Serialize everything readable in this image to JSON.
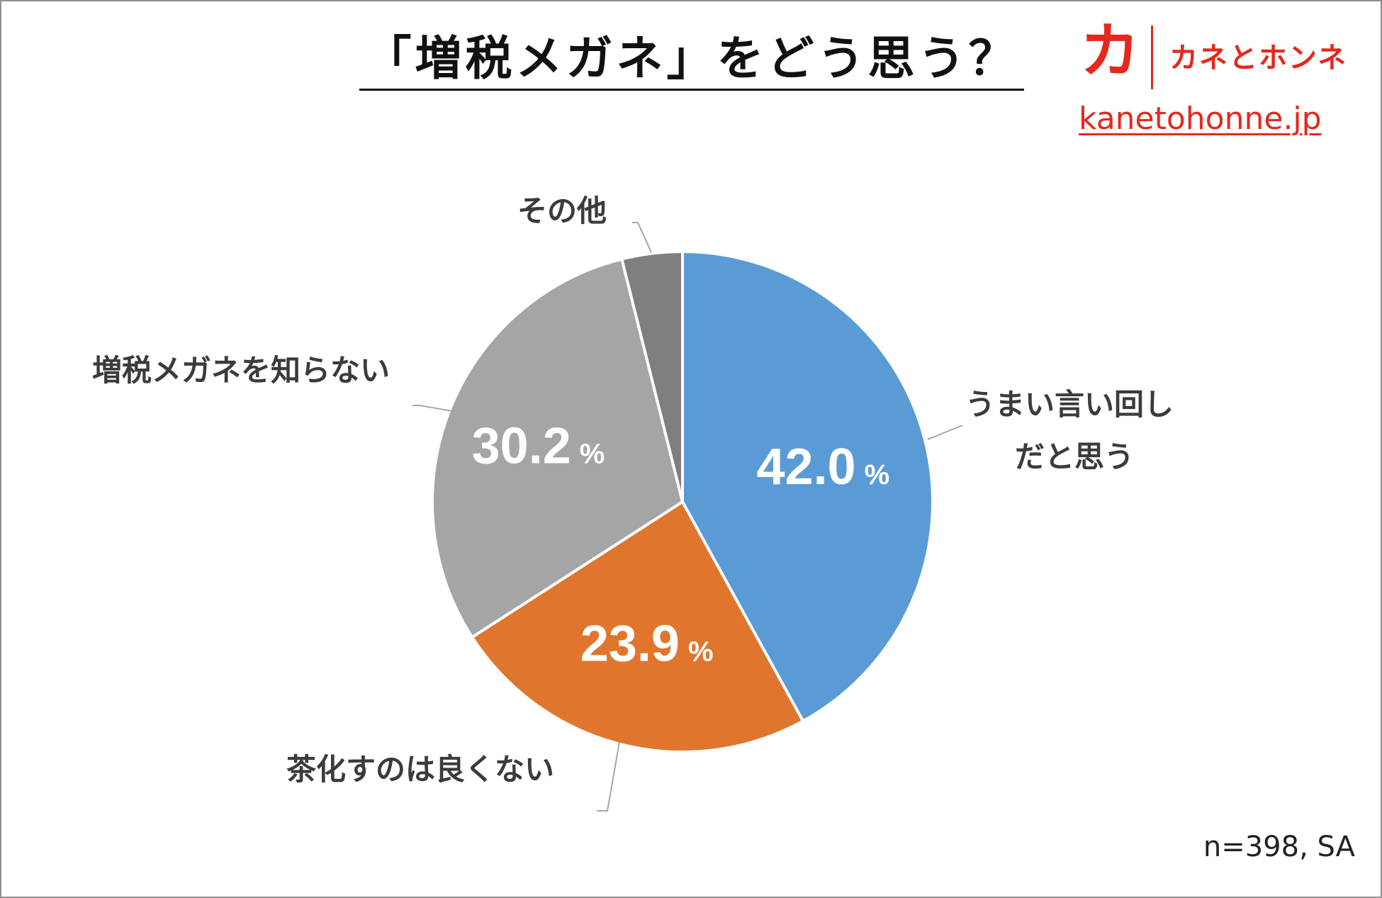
{
  "title": "「増税メガネ」をどう思う？",
  "logo": {
    "mark": "カ",
    "name": "カネとホンネ",
    "url": "kanetohonne.jp"
  },
  "note": "n=398, SA",
  "chart_data": {
    "type": "pie",
    "categories": [
      "うまい言い回しだと思う",
      "茶化すのは良くない",
      "増税メガネを知らない",
      "その他"
    ],
    "values": [
      42.0,
      23.9,
      30.2,
      3.9
    ],
    "value_labels": [
      "42.0",
      "23.9",
      "30.2",
      ""
    ],
    "percent_symbol": "%",
    "label_lines": [
      [
        "うまい言い回し",
        "だと思う"
      ],
      [
        "茶化すのは良くない"
      ],
      [
        "増税メガネを知らない"
      ],
      [
        "その他"
      ]
    ],
    "colors": [
      "#5b9bd5",
      "#e0762d",
      "#a5a5a5",
      "#7f7f7f"
    ],
    "start": "12 o'clock",
    "direction": "clockwise",
    "legend": "none"
  }
}
